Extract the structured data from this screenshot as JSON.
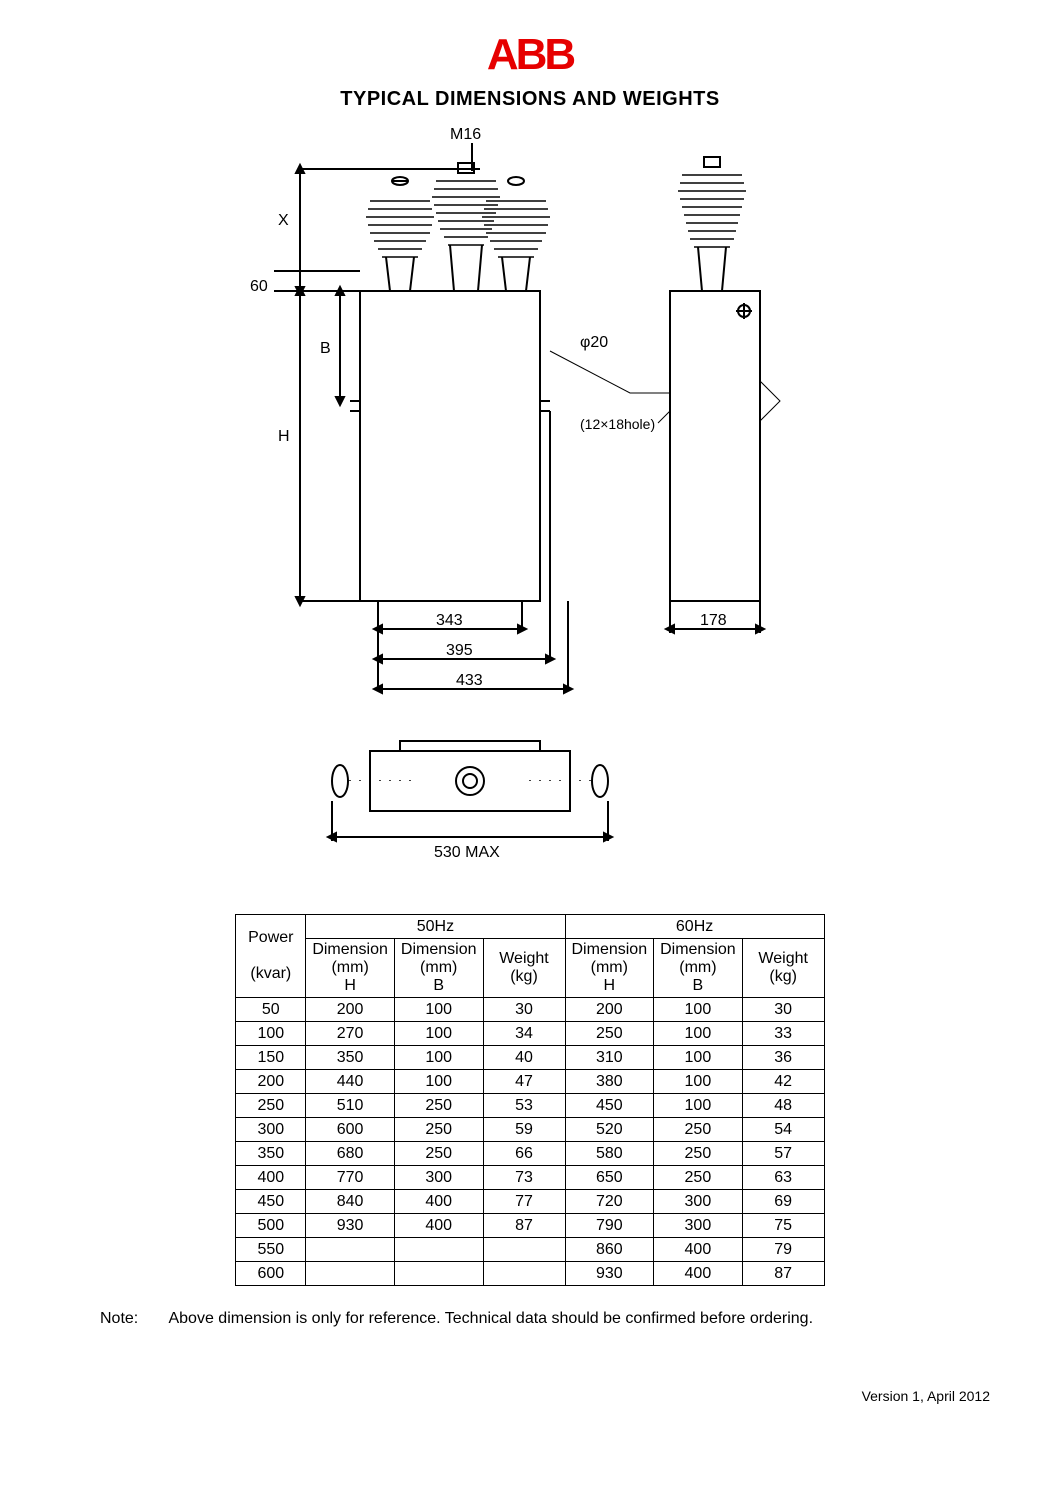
{
  "logo": {
    "text": "ABB",
    "color": "#e60000",
    "fontsize": 44,
    "weight": 900
  },
  "title": "TYPICAL DIMENSIONS AND WEIGHTS",
  "diagram": {
    "labels": {
      "m16": "M16",
      "x": "X",
      "sixty": "60",
      "b": "B",
      "h": "H",
      "phi20": "φ20",
      "hole": "(12×18hole)",
      "343": "343",
      "395": "395",
      "433": "433",
      "178": "178",
      "530max": "530 MAX"
    },
    "stroke": "#000000",
    "stroke_width": 2
  },
  "table": {
    "freq_headers": [
      "50Hz",
      "60Hz"
    ],
    "col_headers": {
      "power": "Power",
      "power_unit": "(kvar)",
      "dim_mm": "Dimension (mm)",
      "dim_h": "H",
      "dim_b": "B",
      "weight": "Weight (kg)"
    },
    "rows": [
      {
        "power": "50",
        "h50": "200",
        "b50": "100",
        "w50": "30",
        "h60": "200",
        "b60": "100",
        "w60": "30"
      },
      {
        "power": "100",
        "h50": "270",
        "b50": "100",
        "w50": "34",
        "h60": "250",
        "b60": "100",
        "w60": "33"
      },
      {
        "power": "150",
        "h50": "350",
        "b50": "100",
        "w50": "40",
        "h60": "310",
        "b60": "100",
        "w60": "36"
      },
      {
        "power": "200",
        "h50": "440",
        "b50": "100",
        "w50": "47",
        "h60": "380",
        "b60": "100",
        "w60": "42"
      },
      {
        "power": "250",
        "h50": "510",
        "b50": "250",
        "w50": "53",
        "h60": "450",
        "b60": "100",
        "w60": "48"
      },
      {
        "power": "300",
        "h50": "600",
        "b50": "250",
        "w50": "59",
        "h60": "520",
        "b60": "250",
        "w60": "54"
      },
      {
        "power": "350",
        "h50": "680",
        "b50": "250",
        "w50": "66",
        "h60": "580",
        "b60": "250",
        "w60": "57"
      },
      {
        "power": "400",
        "h50": "770",
        "b50": "300",
        "w50": "73",
        "h60": "650",
        "b60": "250",
        "w60": "63"
      },
      {
        "power": "450",
        "h50": "840",
        "b50": "400",
        "w50": "77",
        "h60": "720",
        "b60": "300",
        "w60": "69"
      },
      {
        "power": "500",
        "h50": "930",
        "b50": "400",
        "w50": "87",
        "h60": "790",
        "b60": "300",
        "w60": "75"
      },
      {
        "power": "550",
        "h50": "",
        "b50": "",
        "w50": "",
        "h60": "860",
        "b60": "400",
        "w60": "79"
      },
      {
        "power": "600",
        "h50": "",
        "b50": "",
        "w50": "",
        "h60": "930",
        "b60": "400",
        "w60": "87"
      }
    ]
  },
  "note_label": "Note:",
  "note_text": "Above dimension is only for reference. Technical data should be confirmed before ordering.",
  "version": "Version 1, April 2012"
}
